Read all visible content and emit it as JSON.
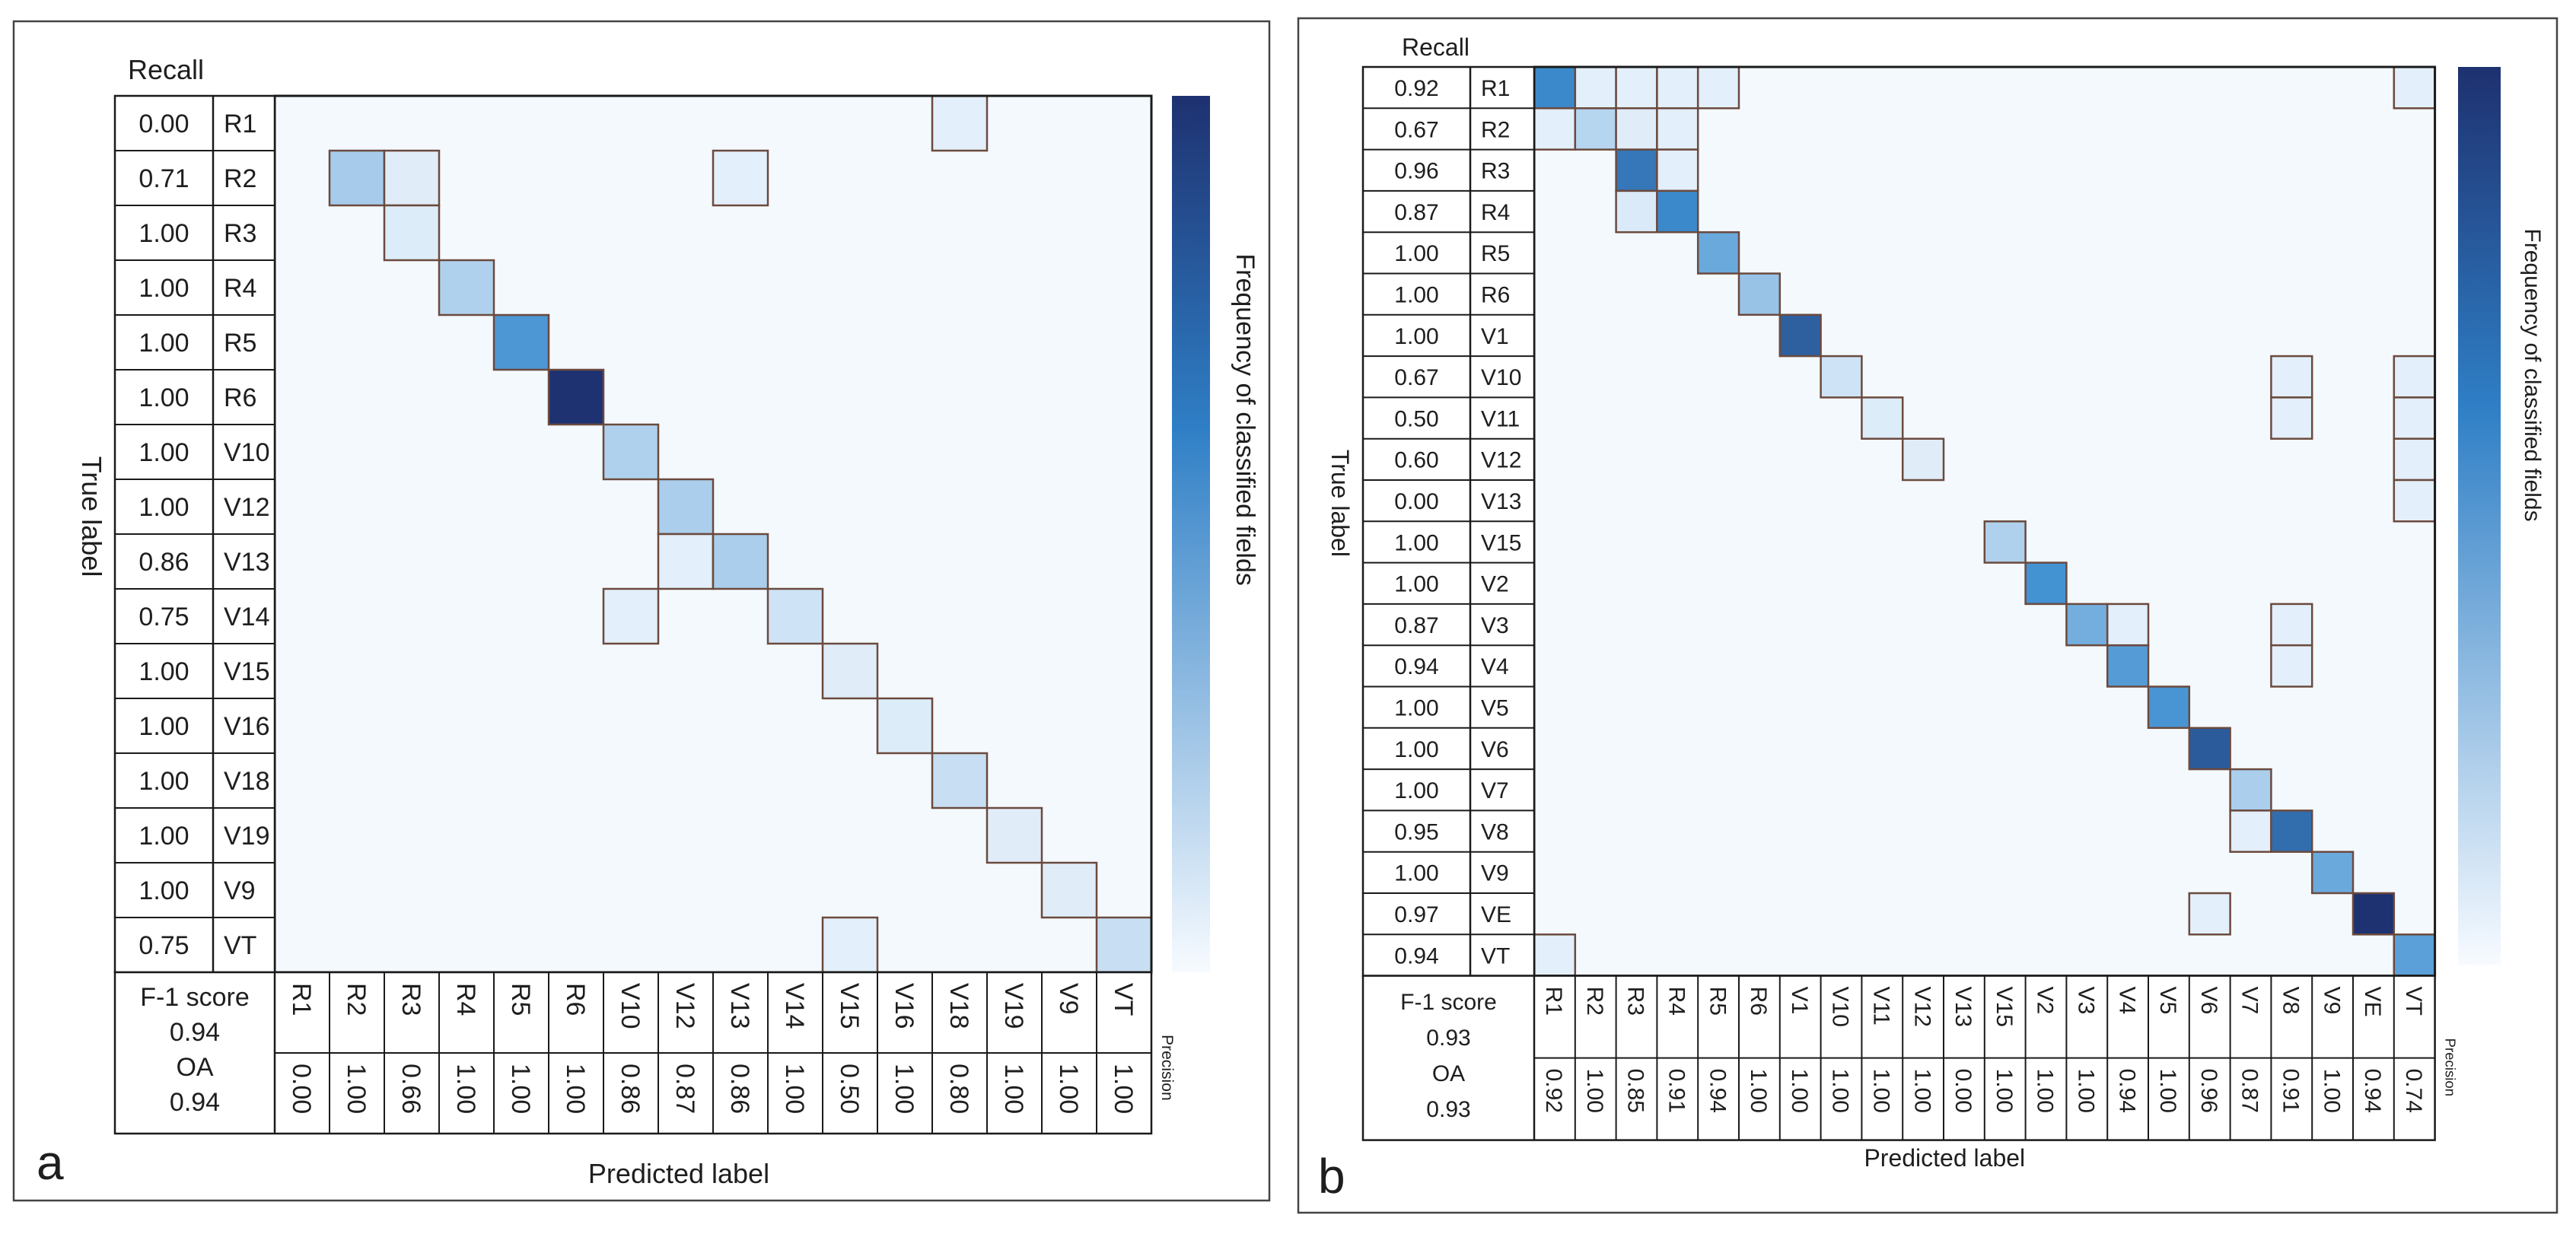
{
  "colors": {
    "grid": "#1a1a1a",
    "cell_border": "#6b4a3e",
    "background_cell": "#f4f9fe",
    "scale_light": "#f2f8fe",
    "scale_mid": "#3d8ed0",
    "scale_dark": "#1e3170"
  },
  "chart_data": [
    {
      "type": "heatmap",
      "panel_label": "a",
      "title": "",
      "recall_header": "Recall",
      "ylabel": "True label",
      "xlabel": "Predicted label",
      "colorbar_label": "Frequency of classified fields",
      "precision_label": "Precision",
      "f1_label": "F-1 score",
      "f1_value": "0.94",
      "oa_label": "OA",
      "oa_value": "0.94",
      "rows": [
        "R1",
        "R2",
        "R3",
        "R4",
        "R5",
        "R6",
        "V10",
        "V12",
        "V13",
        "V14",
        "V15",
        "V16",
        "V18",
        "V19",
        "V9",
        "VT"
      ],
      "cols": [
        "R1",
        "R2",
        "R3",
        "R4",
        "R5",
        "R6",
        "V10",
        "V12",
        "V13",
        "V14",
        "V15",
        "V16",
        "V18",
        "V19",
        "V9",
        "VT"
      ],
      "recall": [
        "0.00",
        "0.71",
        "1.00",
        "1.00",
        "1.00",
        "1.00",
        "1.00",
        "1.00",
        "0.86",
        "0.75",
        "1.00",
        "1.00",
        "1.00",
        "1.00",
        "1.00",
        "0.75"
      ],
      "precision": [
        "0.00",
        "1.00",
        "0.66",
        "1.00",
        "1.00",
        "1.00",
        "0.86",
        "0.87",
        "0.86",
        "1.00",
        "0.50",
        "1.00",
        "0.80",
        "1.00",
        "1.00",
        "1.00"
      ],
      "cells": [
        {
          "r": 0,
          "c": 12,
          "v": 0.05
        },
        {
          "r": 1,
          "c": 1,
          "v": 0.25
        },
        {
          "r": 1,
          "c": 2,
          "v": 0.06
        },
        {
          "r": 1,
          "c": 8,
          "v": 0.05
        },
        {
          "r": 2,
          "c": 2,
          "v": 0.07
        },
        {
          "r": 3,
          "c": 3,
          "v": 0.22
        },
        {
          "r": 4,
          "c": 4,
          "v": 0.55
        },
        {
          "r": 5,
          "c": 5,
          "v": 1.0
        },
        {
          "r": 6,
          "c": 6,
          "v": 0.22
        },
        {
          "r": 7,
          "c": 7,
          "v": 0.24
        },
        {
          "r": 8,
          "c": 7,
          "v": 0.05
        },
        {
          "r": 8,
          "c": 8,
          "v": 0.24
        },
        {
          "r": 9,
          "c": 6,
          "v": 0.05
        },
        {
          "r": 9,
          "c": 9,
          "v": 0.12
        },
        {
          "r": 10,
          "c": 10,
          "v": 0.06
        },
        {
          "r": 11,
          "c": 11,
          "v": 0.07
        },
        {
          "r": 12,
          "c": 12,
          "v": 0.14
        },
        {
          "r": 13,
          "c": 13,
          "v": 0.06
        },
        {
          "r": 14,
          "c": 14,
          "v": 0.06
        },
        {
          "r": 15,
          "c": 10,
          "v": 0.05
        },
        {
          "r": 15,
          "c": 15,
          "v": 0.14
        }
      ]
    },
    {
      "type": "heatmap",
      "panel_label": "b",
      "title": "",
      "recall_header": "Recall",
      "ylabel": "True label",
      "xlabel": "Predicted label",
      "colorbar_label": "Frequency of classified fields",
      "precision_label": "Precision",
      "f1_label": "F-1 score",
      "f1_value": "0.93",
      "oa_label": "OA",
      "oa_value": "0.93",
      "rows": [
        "R1",
        "R2",
        "R3",
        "R4",
        "R5",
        "R6",
        "V1",
        "V10",
        "V11",
        "V12",
        "V13",
        "V15",
        "V2",
        "V3",
        "V4",
        "V5",
        "V6",
        "V7",
        "V8",
        "V9",
        "VE",
        "VT"
      ],
      "cols": [
        "R1",
        "R2",
        "R3",
        "R4",
        "R5",
        "R6",
        "V1",
        "V10",
        "V11",
        "V12",
        "V13",
        "V15",
        "V2",
        "V3",
        "V4",
        "V5",
        "V6",
        "V7",
        "V8",
        "V9",
        "VE",
        "VT"
      ],
      "recall": [
        "0.92",
        "0.67",
        "0.96",
        "0.87",
        "1.00",
        "1.00",
        "1.00",
        "0.67",
        "0.50",
        "0.60",
        "0.00",
        "1.00",
        "1.00",
        "0.87",
        "0.94",
        "1.00",
        "1.00",
        "1.00",
        "0.95",
        "1.00",
        "0.97",
        "0.94"
      ],
      "precision": [
        "0.92",
        "1.00",
        "0.85",
        "0.91",
        "0.94",
        "1.00",
        "1.00",
        "1.00",
        "1.00",
        "1.00",
        "0.00",
        "1.00",
        "1.00",
        "1.00",
        "0.94",
        "1.00",
        "0.96",
        "0.87",
        "0.91",
        "1.00",
        "0.94",
        "0.74"
      ],
      "cells": [
        {
          "r": 0,
          "c": 0,
          "v": 0.62
        },
        {
          "r": 0,
          "c": 1,
          "v": 0.05
        },
        {
          "r": 0,
          "c": 2,
          "v": 0.05
        },
        {
          "r": 0,
          "c": 3,
          "v": 0.05
        },
        {
          "r": 0,
          "c": 4,
          "v": 0.05
        },
        {
          "r": 0,
          "c": 21,
          "v": 0.05
        },
        {
          "r": 1,
          "c": 0,
          "v": 0.05
        },
        {
          "r": 1,
          "c": 1,
          "v": 0.2
        },
        {
          "r": 1,
          "c": 2,
          "v": 0.06
        },
        {
          "r": 1,
          "c": 3,
          "v": 0.05
        },
        {
          "r": 2,
          "c": 2,
          "v": 0.7
        },
        {
          "r": 2,
          "c": 3,
          "v": 0.05
        },
        {
          "r": 3,
          "c": 2,
          "v": 0.08
        },
        {
          "r": 3,
          "c": 3,
          "v": 0.62
        },
        {
          "r": 4,
          "c": 4,
          "v": 0.45
        },
        {
          "r": 5,
          "c": 5,
          "v": 0.3
        },
        {
          "r": 6,
          "c": 6,
          "v": 0.8
        },
        {
          "r": 7,
          "c": 7,
          "v": 0.12
        },
        {
          "r": 7,
          "c": 18,
          "v": 0.05
        },
        {
          "r": 7,
          "c": 21,
          "v": 0.05
        },
        {
          "r": 8,
          "c": 8,
          "v": 0.07
        },
        {
          "r": 8,
          "c": 18,
          "v": 0.05
        },
        {
          "r": 8,
          "c": 21,
          "v": 0.05
        },
        {
          "r": 9,
          "c": 9,
          "v": 0.06
        },
        {
          "r": 9,
          "c": 21,
          "v": 0.05
        },
        {
          "r": 10,
          "c": 21,
          "v": 0.05
        },
        {
          "r": 11,
          "c": 11,
          "v": 0.22
        },
        {
          "r": 12,
          "c": 12,
          "v": 0.58
        },
        {
          "r": 13,
          "c": 13,
          "v": 0.42
        },
        {
          "r": 13,
          "c": 14,
          "v": 0.05
        },
        {
          "r": 13,
          "c": 18,
          "v": 0.05
        },
        {
          "r": 14,
          "c": 14,
          "v": 0.52
        },
        {
          "r": 14,
          "c": 18,
          "v": 0.05
        },
        {
          "r": 15,
          "c": 15,
          "v": 0.56
        },
        {
          "r": 16,
          "c": 16,
          "v": 0.82
        },
        {
          "r": 17,
          "c": 17,
          "v": 0.24
        },
        {
          "r": 18,
          "c": 17,
          "v": 0.05
        },
        {
          "r": 18,
          "c": 18,
          "v": 0.74
        },
        {
          "r": 19,
          "c": 19,
          "v": 0.45
        },
        {
          "r": 20,
          "c": 16,
          "v": 0.05
        },
        {
          "r": 20,
          "c": 20,
          "v": 1.0
        },
        {
          "r": 21,
          "c": 0,
          "v": 0.05
        },
        {
          "r": 21,
          "c": 21,
          "v": 0.5
        }
      ]
    }
  ]
}
